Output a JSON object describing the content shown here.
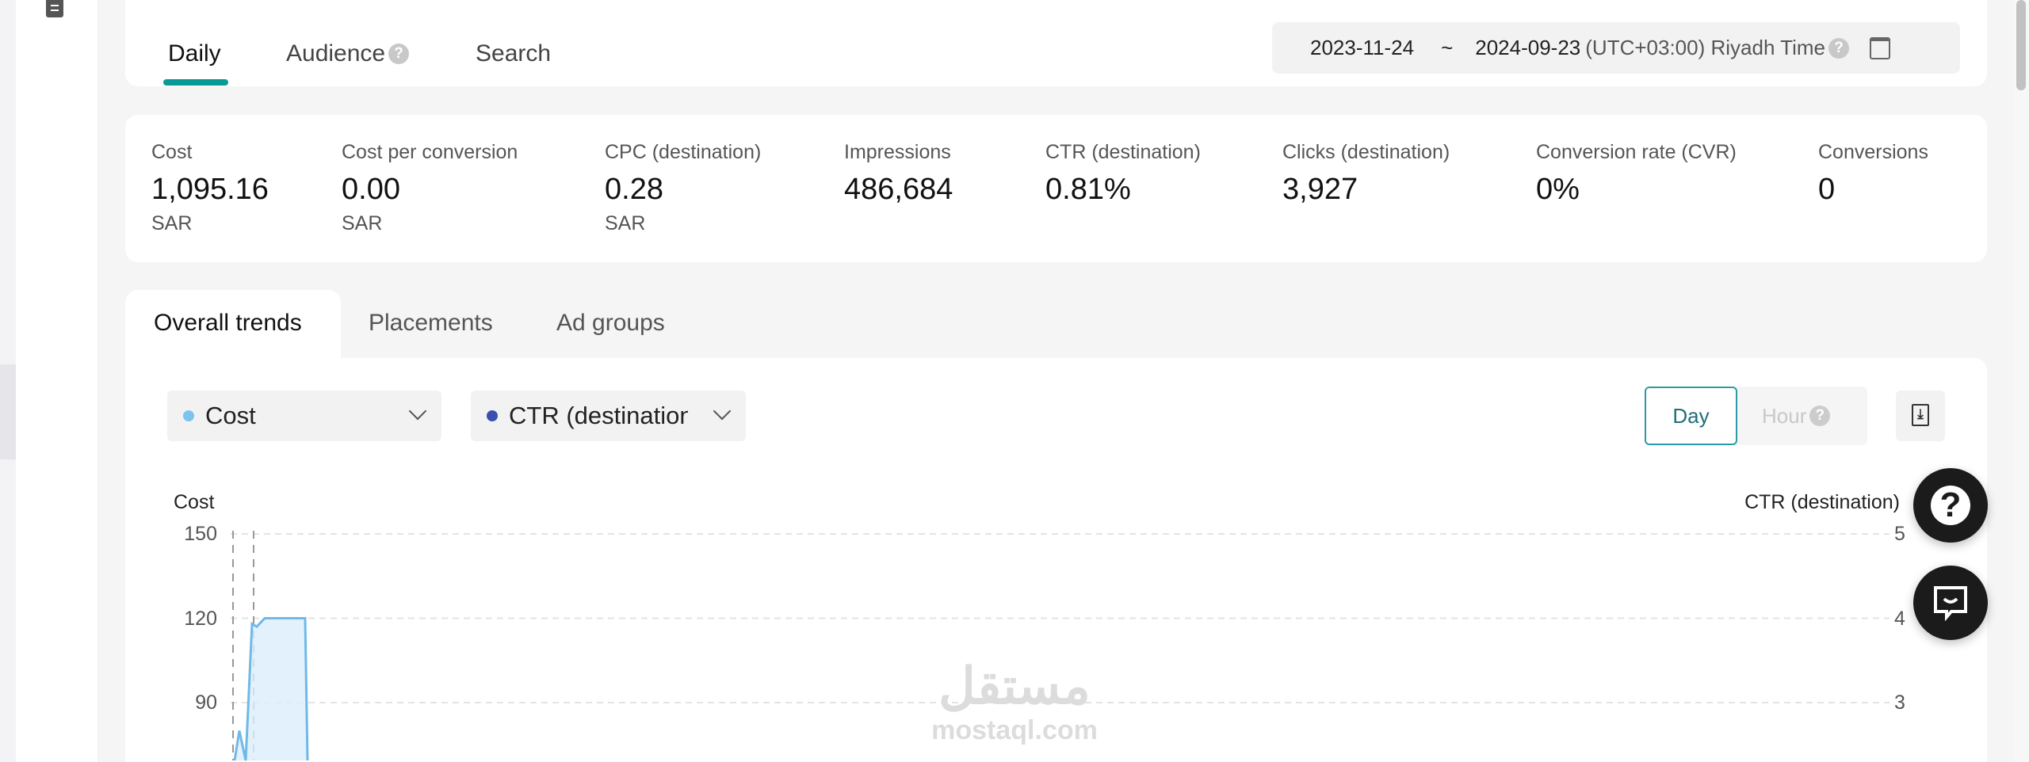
{
  "header": {
    "tabs": [
      {
        "label": "Daily",
        "active": true
      },
      {
        "label": "Audience",
        "help": true
      },
      {
        "label": "Search"
      }
    ],
    "date_range": {
      "start": "2023-11-24",
      "separator": "~",
      "end": "2024-09-23",
      "timezone": "(UTC+03:00) Riyadh Time",
      "icon": "calendar-icon"
    }
  },
  "metrics": [
    {
      "label": "Cost",
      "value": "1,095.16",
      "unit": "SAR"
    },
    {
      "label": "Cost per conversion",
      "value": "0.00",
      "unit": "SAR"
    },
    {
      "label": "CPC (destination)",
      "value": "0.28",
      "unit": "SAR"
    },
    {
      "label": "Impressions",
      "value": "486,684"
    },
    {
      "label": "CTR (destination)",
      "value": "0.81%"
    },
    {
      "label": "Clicks (destination)",
      "value": "3,927"
    },
    {
      "label": "Conversion rate (CVR)",
      "value": "0%"
    },
    {
      "label": "Conversions",
      "value": "0"
    }
  ],
  "subtabs": [
    {
      "label": "Overall trends",
      "active": true
    },
    {
      "label": "Placements"
    },
    {
      "label": "Ad groups"
    }
  ],
  "chart_controls": {
    "metric1": {
      "label": "Cost",
      "color": "#7cc4ef"
    },
    "metric2": {
      "label": "CTR (destination)",
      "color": "#3a4fb0"
    },
    "granularity": {
      "day": "Day",
      "hour": "Hour",
      "selected": "Day"
    },
    "download_icon": "download-icon"
  },
  "chart_data": {
    "type": "area",
    "left_axis": {
      "label": "Cost",
      "ticks": [
        150,
        120,
        90
      ]
    },
    "right_axis": {
      "label": "CTR (destination)",
      "ticks": [
        5,
        4,
        3
      ]
    },
    "grid": true,
    "series": [
      {
        "name": "Cost",
        "color": "#7cc4ef",
        "values": [
          0,
          80,
          0,
          118,
          117,
          120,
          120,
          120,
          120,
          120,
          0
        ]
      }
    ]
  },
  "floating": {
    "help_icon": "question-icon",
    "chat_icon": "chat-icon"
  },
  "watermark": {
    "arabic": "مستقل",
    "latin": "mostaql.com"
  },
  "colors": {
    "accent": "#0a9a95",
    "day_border": "#2c9aa6"
  }
}
